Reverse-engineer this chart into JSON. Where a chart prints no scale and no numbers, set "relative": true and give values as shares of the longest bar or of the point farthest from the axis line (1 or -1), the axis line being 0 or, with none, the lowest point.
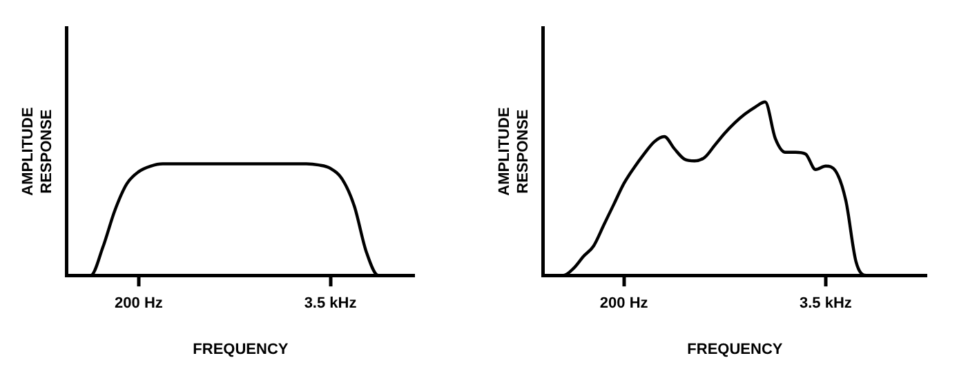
{
  "chart_data": [
    {
      "type": "line",
      "xlabel": "FREQUENCY",
      "ylabel": "AMPLITUDE RESPONSE",
      "relative": true,
      "grid": false,
      "legend": false,
      "marker": "none",
      "line_style": "solid",
      "categories": [
        null,
        null,
        null,
        null,
        null,
        null,
        "200 Hz",
        null,
        null,
        null,
        null,
        null,
        null,
        null,
        null,
        null,
        null,
        null,
        null,
        null,
        null,
        null,
        "3.5 kHz",
        null,
        null,
        null,
        null,
        null,
        null,
        null
      ],
      "series": [
        {
          "color": "#000000",
          "values": [
            0,
            0,
            0,
            0.25,
            0.58,
            0.82,
            0.93,
            0.98,
            1,
            1,
            1,
            1,
            1,
            1,
            1,
            1,
            1,
            1,
            1,
            1,
            1,
            0.99,
            0.96,
            0.86,
            0.62,
            0.21,
            0,
            0,
            0,
            0
          ]
        }
      ]
    },
    {
      "type": "line",
      "xlabel": "FREQUENCY",
      "ylabel": "AMPLITUDE RESPONSE",
      "relative": true,
      "grid": false,
      "legend": false,
      "marker": "none",
      "line_style": "solid",
      "categories": [
        null,
        null,
        null,
        null,
        null,
        null,
        null,
        null,
        "200 Hz",
        null,
        null,
        null,
        null,
        null,
        null,
        null,
        null,
        null,
        null,
        null,
        null,
        null,
        null,
        null,
        null,
        null,
        null,
        null,
        "3.5 kHz",
        null,
        null,
        null,
        null,
        null,
        null,
        null,
        null,
        null,
        null
      ],
      "series": [
        {
          "color": "#000000",
          "values": [
            0,
            0,
            0,
            0.04,
            0.11,
            0.17,
            0.29,
            0.41,
            0.53,
            0.62,
            0.7,
            0.77,
            0.8,
            0.73,
            0.67,
            0.66,
            0.68,
            0.75,
            0.82,
            0.88,
            0.93,
            0.97,
            1,
            0.79,
            0.71,
            0.71,
            0.7,
            0.61,
            0.63,
            0.6,
            0.43,
            0.08,
            0,
            0,
            0,
            0,
            0,
            0,
            0
          ]
        }
      ]
    }
  ]
}
